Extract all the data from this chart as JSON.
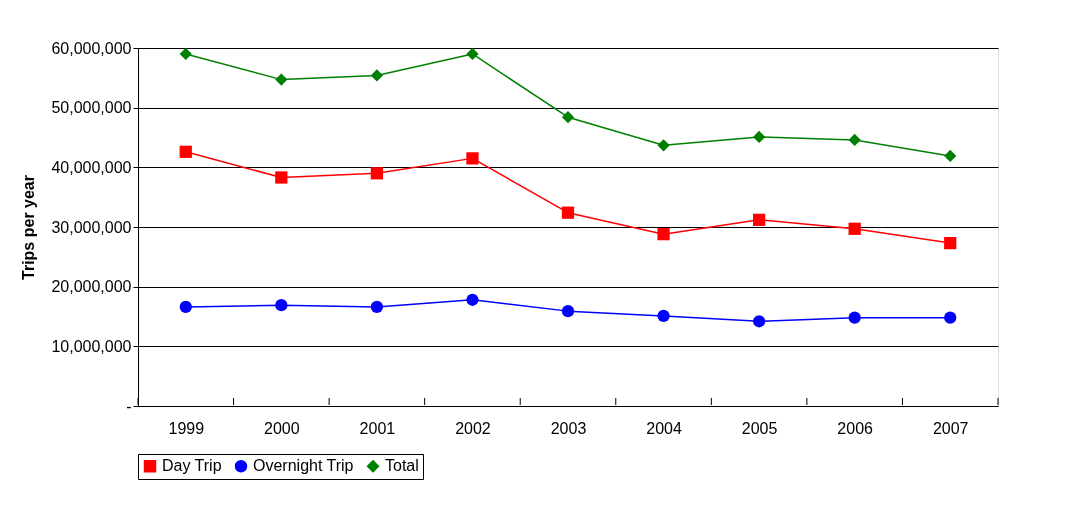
{
  "chart_data": {
    "type": "line",
    "ylabel": "Trips per year",
    "categories": [
      "1999",
      "2000",
      "2001",
      "2002",
      "2003",
      "2004",
      "2005",
      "2006",
      "2007"
    ],
    "series": [
      {
        "name": "Day Trip",
        "color": "#ff0000",
        "marker": "square",
        "values": [
          42600000,
          38300000,
          39000000,
          41500000,
          32400000,
          28800000,
          31200000,
          29700000,
          27300000
        ]
      },
      {
        "name": "Overnight Trip",
        "color": "#0000ff",
        "marker": "circle",
        "values": [
          16600000,
          16900000,
          16600000,
          17800000,
          15900000,
          15100000,
          14200000,
          14800000,
          14800000
        ]
      },
      {
        "name": "Total",
        "color": "#008000",
        "marker": "diamond",
        "values": [
          59000000,
          54700000,
          55400000,
          59000000,
          48400000,
          43700000,
          45100000,
          44600000,
          41900000
        ]
      }
    ],
    "ylim": [
      0,
      60000000
    ],
    "yticks": [
      {
        "value": 0,
        "label": "-"
      },
      {
        "value": 10000000,
        "label": "10,000,000"
      },
      {
        "value": 20000000,
        "label": "20,000,000"
      },
      {
        "value": 30000000,
        "label": "30,000,000"
      },
      {
        "value": 40000000,
        "label": "40,000,000"
      },
      {
        "value": 50000000,
        "label": "50,000,000"
      },
      {
        "value": 60000000,
        "label": "60,000,000"
      }
    ],
    "grid": "y",
    "legend": "bottom",
    "line_style": "solid"
  }
}
